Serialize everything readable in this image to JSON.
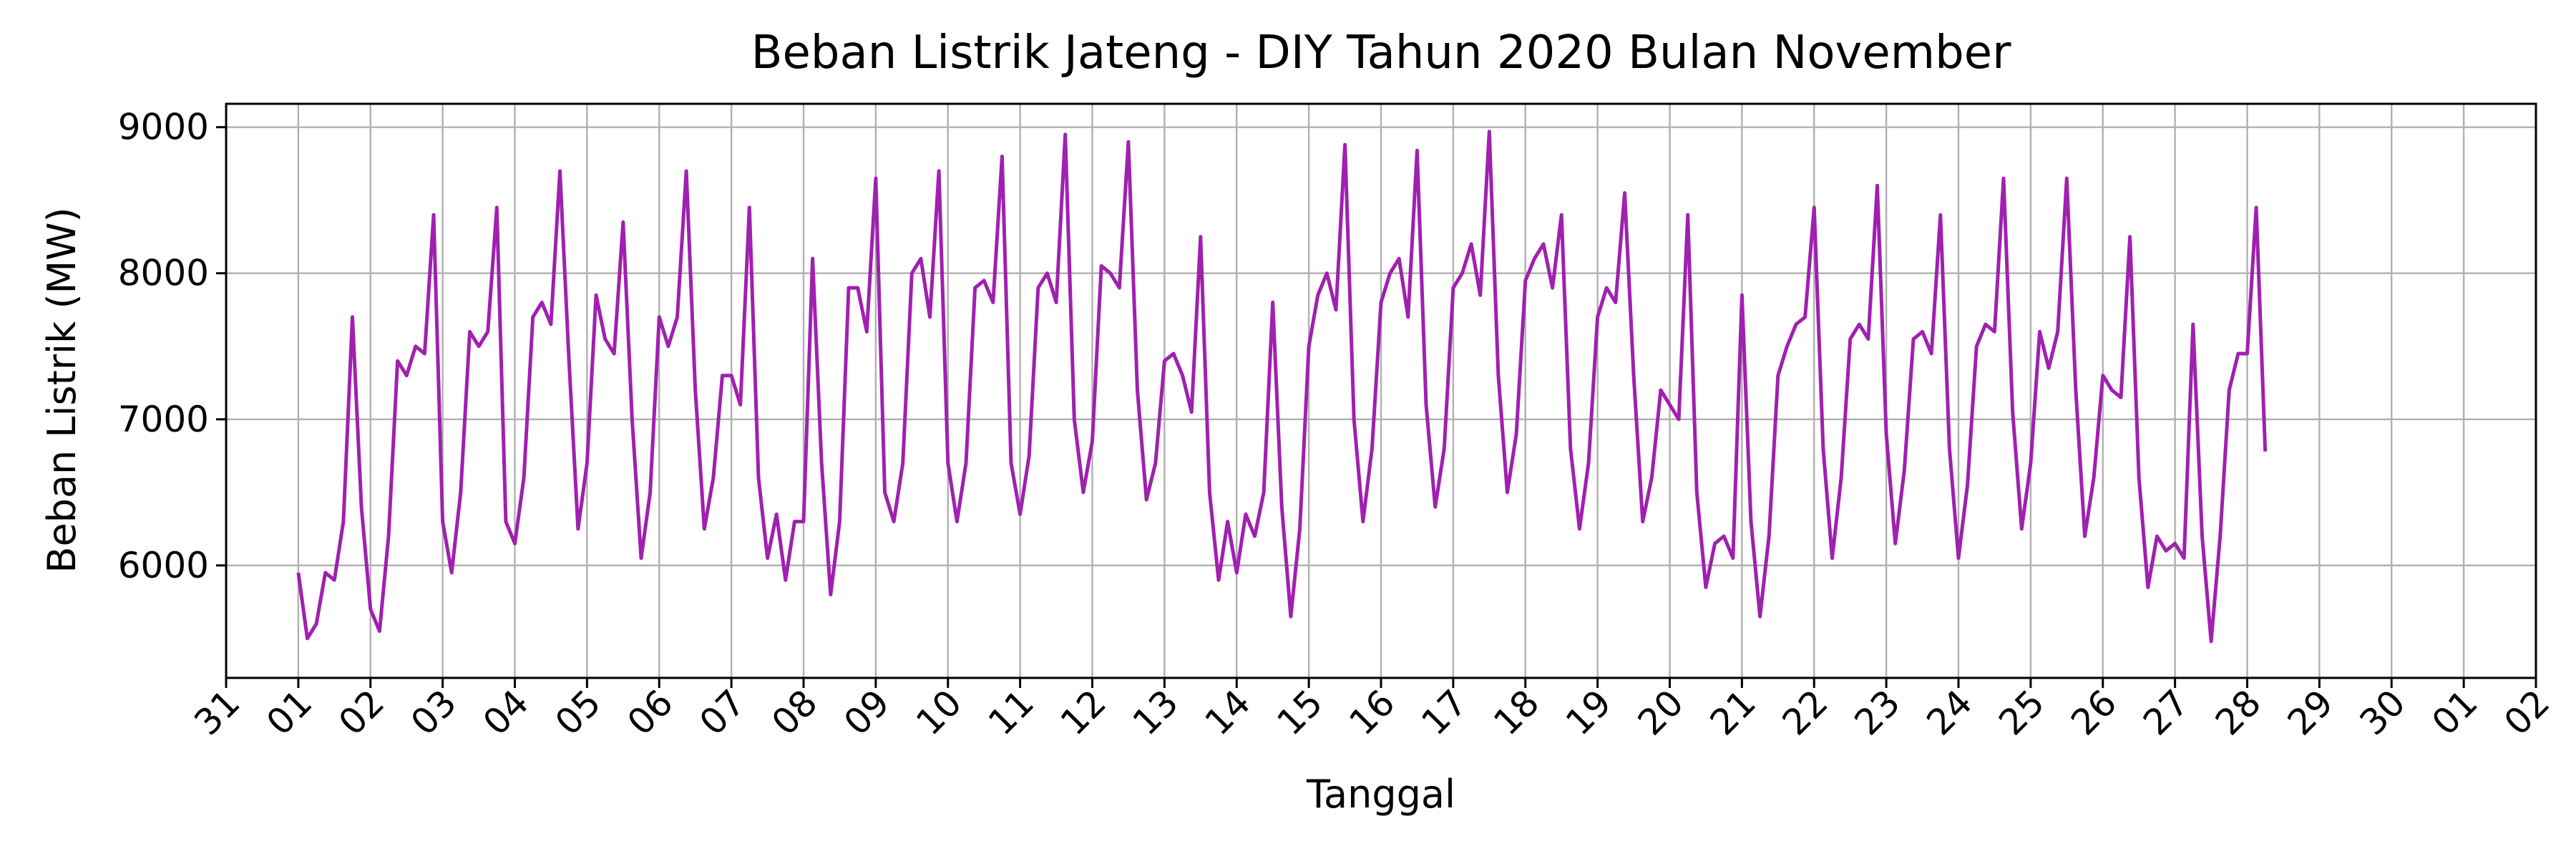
{
  "chart_data": {
    "type": "line",
    "title": "Beban Listrik Jateng - DIY Tahun 2020 Bulan November",
    "xlabel": "Tanggal",
    "ylabel": "Beban Listrik (MW)",
    "xlim": [
      "2020-10-31",
      "2020-12-02"
    ],
    "ylim": [
      5230,
      9160
    ],
    "grid": true,
    "x_ticks": [
      "31",
      "01",
      "02",
      "03",
      "04",
      "05",
      "06",
      "07",
      "08",
      "09",
      "10",
      "11",
      "12",
      "13",
      "14",
      "15",
      "16",
      "17",
      "18",
      "19",
      "20",
      "21",
      "22",
      "23",
      "24",
      "25",
      "26",
      "27",
      "28",
      "29",
      "30",
      "01",
      "02"
    ],
    "y_ticks": [
      "6000",
      "7000",
      "8000",
      "9000"
    ],
    "line_color": "#a020b0",
    "series": [
      {
        "start": "2020-11-01 00:00",
        "interval_hours": 3,
        "values": [
          5950,
          5500,
          5600,
          5950,
          5900,
          6300,
          7700,
          6400,
          5700,
          5550,
          6200,
          7400,
          7300,
          7500,
          7450,
          8400,
          6300,
          5950,
          6500,
          7600,
          7500,
          7600,
          8450,
          6300,
          6150,
          6600,
          7700,
          7800,
          7650,
          8700,
          7400,
          6250,
          6700,
          7850,
          7550,
          7450,
          8350,
          7000,
          6050,
          6500,
          7700,
          7500,
          7700,
          8700,
          7200,
          6250,
          6600,
          7300,
          7300,
          7100,
          8450,
          6600,
          6050,
          6350,
          5900,
          6300,
          6300,
          8100,
          6700,
          5800,
          6300,
          7900,
          7900,
          7600,
          8650,
          6500,
          6300,
          6700,
          8000,
          8100,
          7700,
          8700,
          6700,
          6300,
          6700,
          7900,
          7950,
          7800,
          8800,
          6700,
          6350,
          6750,
          7900,
          8000,
          7800,
          8950,
          7000,
          6500,
          6850,
          8050,
          8000,
          7900,
          8900,
          7200,
          6450,
          6700,
          7400,
          7450,
          7300,
          7050,
          8250,
          6500,
          5900,
          6300,
          5950,
          6350,
          6200,
          6500,
          7800,
          6400,
          5650,
          6250,
          7500,
          7850,
          8000,
          7750,
          8880,
          7000,
          6300,
          6800,
          7800,
          8000,
          8100,
          7700,
          8840,
          7100,
          6400,
          6800,
          7900,
          8000,
          8200,
          7850,
          8970,
          7300,
          6500,
          6900,
          7950,
          8100,
          8200,
          7900,
          8400,
          6800,
          6250,
          6700,
          7700,
          7900,
          7800,
          8550,
          7300,
          6300,
          6600,
          7200,
          7100,
          7000,
          8400,
          6500,
          5850,
          6150,
          6200,
          6050,
          7850,
          6300,
          5650,
          6200,
          7300,
          7500,
          7650,
          7700,
          8450,
          6800,
          6050,
          6600,
          7550,
          7650,
          7550,
          8600,
          6900,
          6150,
          6650,
          7550,
          7600,
          7450,
          8400,
          6800,
          6050,
          6550,
          7500,
          7650,
          7600,
          8650,
          7050,
          6250,
          6700,
          7600,
          7350,
          7600,
          8650,
          7200,
          6200,
          6600,
          7300,
          7200,
          7150,
          8250,
          6600,
          5850,
          6200,
          6100,
          6150,
          6050,
          7650,
          6200,
          5480,
          6200,
          7200,
          7450,
          7450,
          8450,
          6780
        ]
      }
    ]
  }
}
